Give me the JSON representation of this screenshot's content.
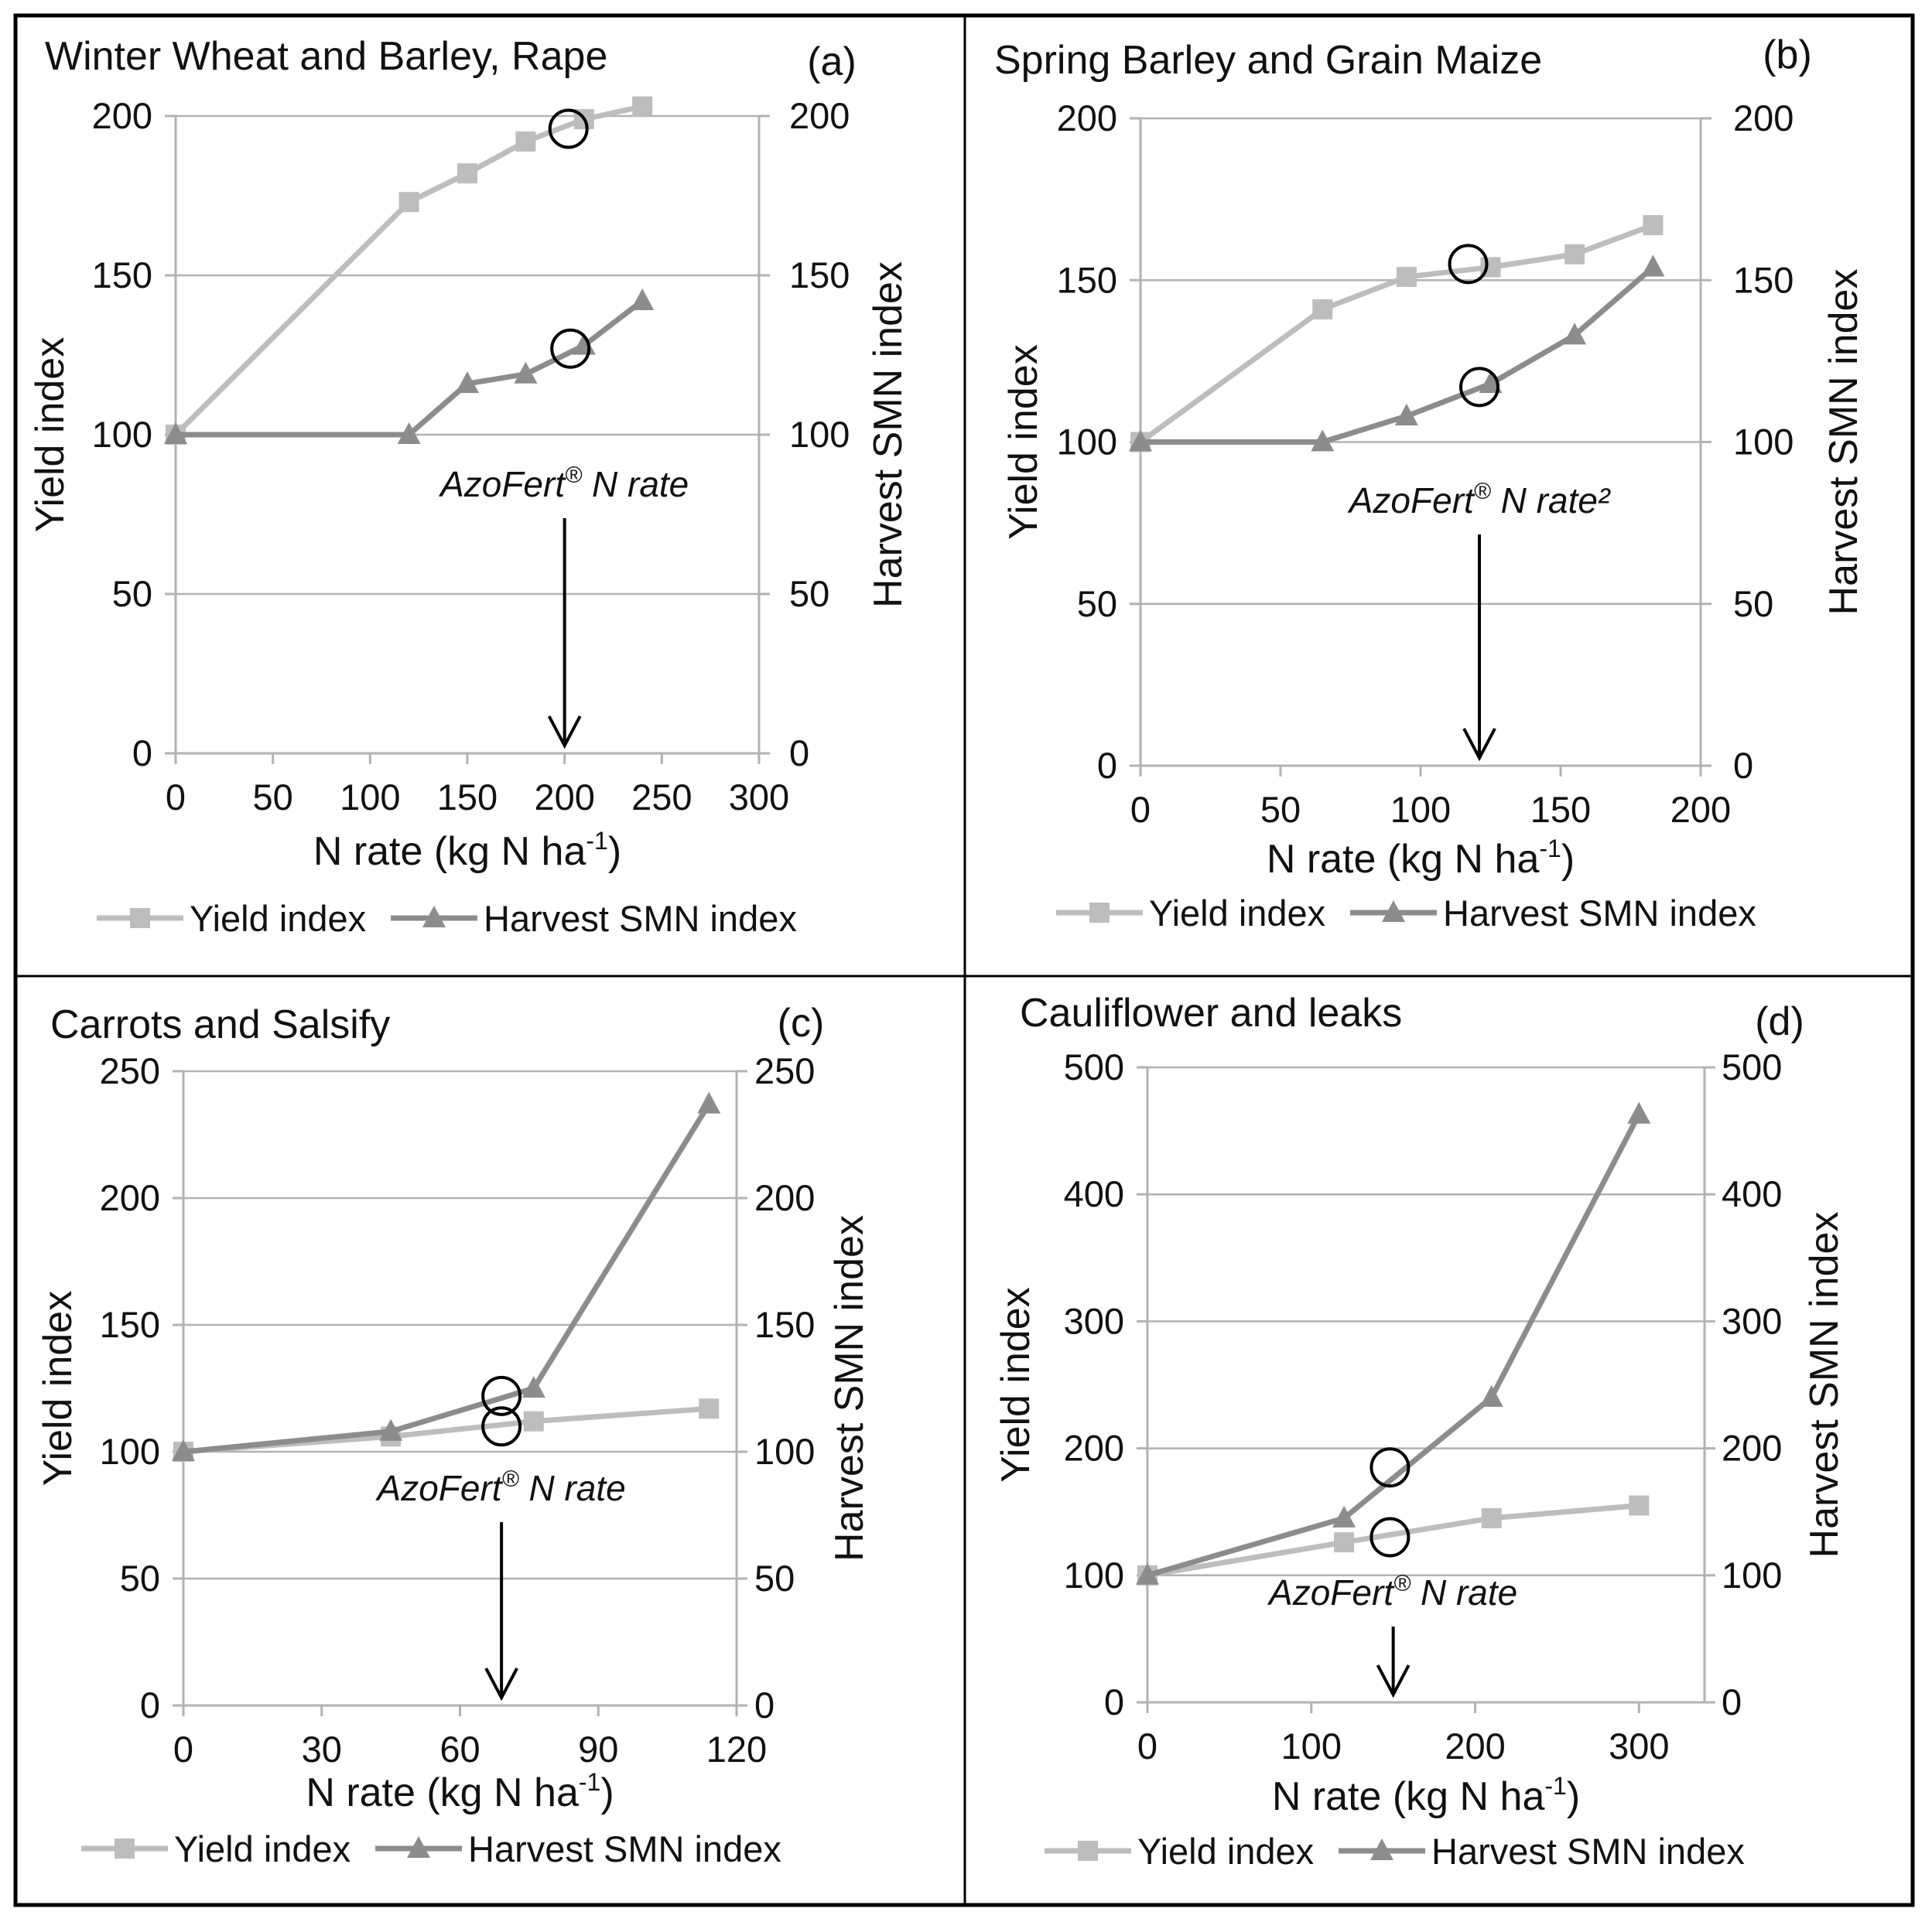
{
  "chart_data": [
    {
      "type": "line",
      "panel": "(a)",
      "title": "Winter Wheat and Barley, Rape",
      "xlabel": "N rate (kg N ha",
      "xlabel_sup": "-1",
      "xlabel_end": ")",
      "ylabel": "Yield index",
      "y2label": "Harvest SMN index",
      "xlim": [
        0,
        300
      ],
      "ylim": [
        0,
        200
      ],
      "xticks": [
        0,
        50,
        100,
        150,
        200,
        250,
        300
      ],
      "yticks": [
        0,
        50,
        100,
        150,
        200
      ],
      "annotation": "AzoFert",
      "annotation_sup": "®",
      "annotation_end": " N rate",
      "arrow_x": 200,
      "series": [
        {
          "name": "Yield index",
          "marker": "square",
          "color": "#bdbdbd",
          "x": [
            0,
            120,
            150,
            180,
            210,
            240
          ],
          "values": [
            100,
            173,
            182,
            192,
            199,
            203
          ]
        },
        {
          "name": "Harvest SMN index",
          "marker": "triangle",
          "color": "#8c8c8c",
          "x": [
            0,
            120,
            150,
            180,
            210,
            240
          ],
          "values": [
            100,
            100,
            116,
            119,
            128,
            142
          ]
        }
      ],
      "circles": [
        {
          "x": 202,
          "y": 196
        },
        {
          "x": 203,
          "y": 127
        }
      ]
    },
    {
      "type": "line",
      "panel": "(b)",
      "title": "Spring Barley and Grain Maize",
      "xlabel": "N rate (kg N ha",
      "xlabel_sup": "-1",
      "xlabel_end": ")",
      "ylabel": "Yield index",
      "y2label": "Harvest SMN index",
      "xlim": [
        0,
        200
      ],
      "ylim": [
        0,
        200
      ],
      "xticks": [
        0,
        50,
        100,
        150,
        200
      ],
      "yticks": [
        0,
        50,
        100,
        150,
        200
      ],
      "annotation": "AzoFert",
      "annotation_sup": "®",
      "annotation_end": " N rate²",
      "arrow_x": 121,
      "series": [
        {
          "name": "Yield index",
          "marker": "square",
          "color": "#bdbdbd",
          "x": [
            0,
            65,
            95,
            125,
            155,
            183
          ],
          "values": [
            100,
            141,
            151,
            154,
            158,
            167
          ]
        },
        {
          "name": "Harvest SMN index",
          "marker": "triangle",
          "color": "#8c8c8c",
          "x": [
            0,
            65,
            95,
            125,
            155,
            183
          ],
          "values": [
            100,
            100,
            108,
            118,
            133,
            154
          ]
        }
      ],
      "circles": [
        {
          "x": 117,
          "y": 155
        },
        {
          "x": 121,
          "y": 117
        }
      ]
    },
    {
      "type": "line",
      "panel": "(c)",
      "title": "Carrots and Salsify",
      "xlabel": "N rate (kg N ha",
      "xlabel_sup": "-1",
      "xlabel_end": ")",
      "ylabel": "Yield index",
      "y2label": "Harvest SMN index",
      "xlim": [
        0,
        120
      ],
      "ylim": [
        0,
        250
      ],
      "xticks": [
        0,
        30,
        60,
        90,
        120
      ],
      "yticks": [
        0,
        50,
        100,
        150,
        200,
        250
      ],
      "annotation": "AzoFert",
      "annotation_sup": "®",
      "annotation_end": " N rate",
      "arrow_x": 69,
      "series": [
        {
          "name": "Yield index",
          "marker": "square",
          "color": "#bdbdbd",
          "x": [
            0,
            45,
            76,
            114
          ],
          "values": [
            100,
            106,
            112,
            117
          ]
        },
        {
          "name": "Harvest SMN index",
          "marker": "triangle",
          "color": "#8c8c8c",
          "x": [
            0,
            45,
            76,
            114
          ],
          "values": [
            100,
            108,
            125,
            237
          ]
        }
      ],
      "circles": [
        {
          "x": 69,
          "y": 122
        },
        {
          "x": 69,
          "y": 110
        }
      ]
    },
    {
      "type": "line",
      "panel": "(d)",
      "title": "Cauliflower and leaks",
      "xlabel": "N rate (kg N ha",
      "xlabel_sup": "-1",
      "xlabel_end": ")",
      "ylabel": "Yield index",
      "y2label": "Harvest SMN index",
      "xlim": [
        0,
        340
      ],
      "ylim": [
        0,
        500
      ],
      "xticks": [
        0,
        100,
        200,
        300
      ],
      "yticks": [
        0,
        100,
        200,
        300,
        400,
        500
      ],
      "annotation": "AzoFert",
      "annotation_sup": "®",
      "annotation_end": " N rate",
      "arrow_x": 150,
      "series": [
        {
          "name": "Yield index",
          "marker": "square",
          "color": "#bdbdbd",
          "x": [
            0,
            120,
            210,
            300
          ],
          "values": [
            100,
            126,
            145,
            155
          ]
        },
        {
          "name": "Harvest SMN index",
          "marker": "triangle",
          "color": "#8c8c8c",
          "x": [
            0,
            120,
            210,
            300
          ],
          "values": [
            100,
            145,
            240,
            463
          ]
        }
      ],
      "circles": [
        {
          "x": 148,
          "y": 185
        },
        {
          "x": 148,
          "y": 130
        }
      ]
    }
  ]
}
